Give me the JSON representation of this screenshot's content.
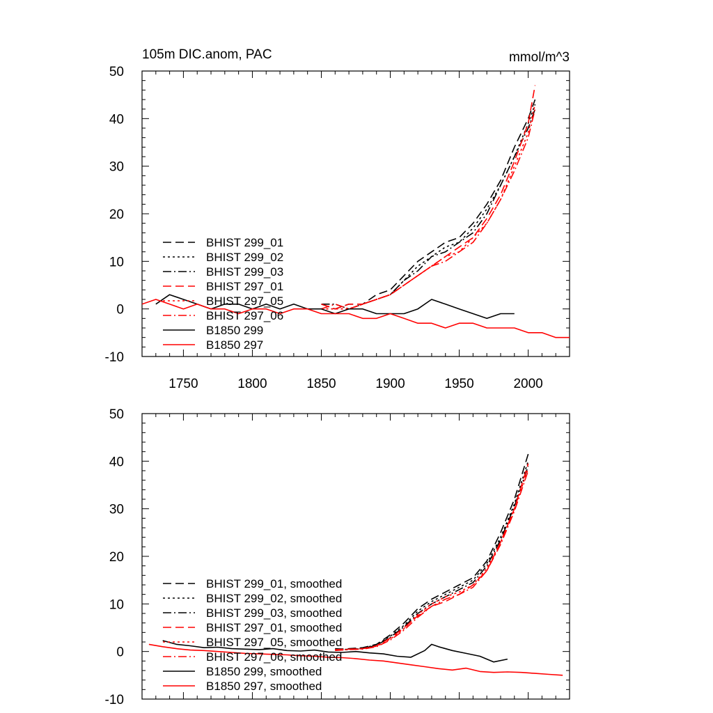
{
  "chart_data": [
    {
      "type": "line",
      "title_left": "105m DIC.anom, PAC",
      "title_right": "mmol/m^3",
      "xlabel": "",
      "ylabel": "",
      "xlim": [
        1720,
        2030
      ],
      "ylim": [
        -10,
        50
      ],
      "x_ticks": [
        1750,
        1800,
        1850,
        1900,
        1950,
        2000
      ],
      "x_tick_labels": [
        "1750",
        "1800",
        "1850",
        "1900",
        "1950",
        "2000"
      ],
      "y_ticks": [
        -10,
        0,
        10,
        20,
        30,
        40,
        50
      ],
      "y_tick_labels": [
        "-10",
        "0",
        "10",
        "20",
        "30",
        "40",
        "50"
      ],
      "grid": false,
      "legend_position": "left",
      "series": [
        {
          "name": "BHIST 299_01",
          "color": "#000000",
          "dash": "dash",
          "x": [
            1850,
            1860,
            1870,
            1880,
            1890,
            1900,
            1910,
            1920,
            1930,
            1940,
            1950,
            1960,
            1970,
            1980,
            1990,
            2000,
            2005
          ],
          "y": [
            1,
            0,
            1,
            1,
            3,
            4,
            7,
            10,
            12,
            14,
            15,
            18,
            22,
            27,
            34,
            40,
            44
          ]
        },
        {
          "name": "BHIST 299_02",
          "color": "#000000",
          "dash": "dot",
          "x": [
            1850,
            1860,
            1870,
            1880,
            1890,
            1900,
            1910,
            1920,
            1930,
            1940,
            1950,
            1960,
            1970,
            1980,
            1990,
            2000,
            2005
          ],
          "y": [
            0,
            0,
            0,
            1,
            2,
            3,
            6,
            9,
            11,
            13,
            14,
            17,
            21,
            26,
            32,
            39,
            43
          ]
        },
        {
          "name": "BHIST 299_03",
          "color": "#000000",
          "dash": "dashdot",
          "x": [
            1850,
            1860,
            1870,
            1880,
            1890,
            1900,
            1910,
            1920,
            1930,
            1940,
            1950,
            1960,
            1970,
            1980,
            1990,
            2000,
            2005
          ],
          "y": [
            1,
            1,
            0,
            1,
            2,
            3,
            6,
            8,
            11,
            12,
            14,
            16,
            20,
            26,
            32,
            38,
            42
          ]
        },
        {
          "name": "BHIST 297_01",
          "color": "#ff0000",
          "dash": "dash",
          "x": [
            1850,
            1860,
            1870,
            1880,
            1890,
            1900,
            1910,
            1920,
            1930,
            1940,
            1950,
            1960,
            1970,
            1980,
            1990,
            2000,
            2005
          ],
          "y": [
            1,
            0,
            1,
            1,
            2,
            3,
            5,
            7,
            9,
            11,
            13,
            15,
            19,
            24,
            31,
            39,
            47
          ]
        },
        {
          "name": "BHIST 297_05",
          "color": "#ff0000",
          "dash": "dot",
          "x": [
            1850,
            1860,
            1870,
            1880,
            1890,
            1900,
            1910,
            1920,
            1930,
            1940,
            1950,
            1960,
            1970,
            1980,
            1990,
            2000,
            2005
          ],
          "y": [
            0,
            0,
            0,
            1,
            2,
            3,
            5,
            7,
            9,
            11,
            12,
            15,
            18,
            23,
            30,
            37,
            43
          ]
        },
        {
          "name": "BHIST 297_06",
          "color": "#ff0000",
          "dash": "dashdot",
          "x": [
            1850,
            1860,
            1870,
            1880,
            1890,
            1900,
            1910,
            1920,
            1930,
            1940,
            1950,
            1960,
            1970,
            1980,
            1990,
            2000,
            2005
          ],
          "y": [
            0,
            1,
            0,
            1,
            2,
            3,
            5,
            7,
            9,
            10,
            12,
            14,
            18,
            23,
            29,
            36,
            42
          ]
        },
        {
          "name": "B1850 299",
          "color": "#000000",
          "dash": "solid",
          "x": [
            1730,
            1740,
            1750,
            1760,
            1770,
            1780,
            1790,
            1800,
            1810,
            1820,
            1830,
            1840,
            1850,
            1860,
            1870,
            1880,
            1890,
            1900,
            1910,
            1920,
            1930,
            1940,
            1950,
            1960,
            1970,
            1980,
            1990
          ],
          "y": [
            1,
            3,
            2,
            1,
            0,
            1,
            1,
            0,
            1,
            0,
            1,
            0,
            0,
            -1,
            0,
            0,
            -1,
            -1,
            -1,
            0,
            2,
            1,
            0,
            -1,
            -2,
            -1,
            -1
          ]
        },
        {
          "name": "B1850 297",
          "color": "#ff0000",
          "dash": "solid",
          "x": [
            1720,
            1730,
            1740,
            1750,
            1760,
            1770,
            1780,
            1790,
            1800,
            1810,
            1820,
            1830,
            1840,
            1850,
            1860,
            1870,
            1880,
            1890,
            1900,
            1910,
            1920,
            1930,
            1940,
            1950,
            1960,
            1970,
            1980,
            1990,
            2000,
            2010,
            2020,
            2030
          ],
          "y": [
            1,
            2,
            1,
            0,
            1,
            0,
            0,
            -1,
            0,
            0,
            -1,
            0,
            0,
            -1,
            -1,
            -1,
            -2,
            -2,
            -1,
            -2,
            -3,
            -3,
            -4,
            -3,
            -3,
            -4,
            -4,
            -4,
            -5,
            -5,
            -6,
            -6
          ]
        }
      ]
    },
    {
      "type": "line",
      "title_left": "",
      "title_right": "",
      "xlabel": "",
      "ylabel": "",
      "xlim": [
        1720,
        2030
      ],
      "ylim": [
        -10,
        50
      ],
      "x_ticks": [
        1750,
        1800,
        1850,
        1900,
        1950,
        2000
      ],
      "x_tick_labels": [],
      "y_ticks": [
        -10,
        0,
        10,
        20,
        30,
        40,
        50
      ],
      "y_tick_labels": [
        "-10",
        "0",
        "10",
        "20",
        "30",
        "40",
        "50"
      ],
      "grid": false,
      "legend_position": "left",
      "series": [
        {
          "name": "BHIST 299_01, smoothed",
          "color": "#000000",
          "dash": "dash",
          "x": [
            1860,
            1870,
            1880,
            1890,
            1900,
            1910,
            1920,
            1930,
            1940,
            1950,
            1960,
            1970,
            1980,
            1990,
            2000
          ],
          "y": [
            0.5,
            0.6,
            0.8,
            1.5,
            3.5,
            6,
            9,
            11,
            12.5,
            14,
            15.5,
            19,
            25,
            32,
            41.5
          ]
        },
        {
          "name": "BHIST 299_02, smoothed",
          "color": "#000000",
          "dash": "dot",
          "x": [
            1860,
            1870,
            1880,
            1890,
            1900,
            1910,
            1920,
            1930,
            1940,
            1950,
            1960,
            1970,
            1980,
            1990,
            2000
          ],
          "y": [
            0.3,
            0.5,
            0.7,
            1.4,
            3.2,
            5.5,
            8.5,
            10.5,
            12,
            13.5,
            15,
            18.5,
            24,
            31,
            40
          ]
        },
        {
          "name": "BHIST 299_03, smoothed",
          "color": "#000000",
          "dash": "dashdot",
          "x": [
            1860,
            1870,
            1880,
            1890,
            1900,
            1910,
            1920,
            1930,
            1940,
            1950,
            1960,
            1970,
            1980,
            1990,
            2000
          ],
          "y": [
            0.6,
            0.4,
            0.6,
            1.3,
            3.0,
            5.2,
            8,
            10,
            11.5,
            13,
            14.5,
            18,
            23.5,
            30.5,
            39
          ]
        },
        {
          "name": "BHIST 297_01, smoothed",
          "color": "#ff0000",
          "dash": "dash",
          "x": [
            1860,
            1870,
            1880,
            1890,
            1900,
            1910,
            1920,
            1930,
            1940,
            1950,
            1960,
            1970,
            1980,
            1990,
            2000
          ],
          "y": [
            0.4,
            0.5,
            0.6,
            1.2,
            2.8,
            5,
            7.5,
            9.5,
            10.5,
            12,
            14,
            17,
            23,
            30,
            39.5
          ]
        },
        {
          "name": "BHIST 297_05, smoothed",
          "color": "#ff0000",
          "dash": "dot",
          "x": [
            1860,
            1870,
            1880,
            1890,
            1900,
            1910,
            1920,
            1930,
            1940,
            1950,
            1960,
            1970,
            1980,
            1990,
            2000
          ],
          "y": [
            0.3,
            0.4,
            0.6,
            1.1,
            2.6,
            4.8,
            7.8,
            10,
            11.5,
            12.5,
            14,
            17.5,
            23,
            30,
            38.5
          ]
        },
        {
          "name": "BHIST 297_06, smoothed",
          "color": "#ff0000",
          "dash": "dashdot",
          "x": [
            1860,
            1870,
            1880,
            1890,
            1900,
            1910,
            1920,
            1930,
            1940,
            1950,
            1960,
            1970,
            1980,
            1990,
            2000
          ],
          "y": [
            0.2,
            0.4,
            0.5,
            1.0,
            2.4,
            4.5,
            7.2,
            9.5,
            11,
            12,
            13.5,
            17,
            22.5,
            29.5,
            38
          ]
        },
        {
          "name": "B1850 299, smoothed",
          "color": "#000000",
          "dash": "solid",
          "x": [
            1735,
            1745,
            1755,
            1765,
            1775,
            1785,
            1795,
            1805,
            1815,
            1825,
            1835,
            1845,
            1855,
            1865,
            1875,
            1885,
            1895,
            1905,
            1915,
            1925,
            1930,
            1935,
            1945,
            1955,
            1965,
            1975,
            1985
          ],
          "y": [
            2.3,
            1.5,
            1.2,
            0.8,
            0.9,
            0.6,
            0.5,
            0.4,
            0.6,
            0.2,
            0.1,
            0.3,
            -0.1,
            -0.2,
            0.0,
            -0.3,
            -0.5,
            -1.0,
            -1.2,
            0.2,
            1.5,
            1.0,
            0.2,
            -0.4,
            -1.0,
            -2.2,
            -1.6
          ]
        },
        {
          "name": "B1850 297, smoothed",
          "color": "#ff0000",
          "dash": "solid",
          "x": [
            1725,
            1735,
            1745,
            1755,
            1765,
            1775,
            1785,
            1795,
            1805,
            1815,
            1825,
            1835,
            1845,
            1855,
            1865,
            1875,
            1885,
            1895,
            1905,
            1915,
            1925,
            1935,
            1945,
            1955,
            1965,
            1975,
            1985,
            1995,
            2005,
            2015,
            2025
          ],
          "y": [
            1.5,
            1.0,
            0.6,
            0.3,
            0.2,
            0.0,
            -0.2,
            -0.4,
            -0.5,
            -0.6,
            -0.7,
            -0.9,
            -1.0,
            -1.2,
            -1.3,
            -1.5,
            -1.8,
            -2.0,
            -2.4,
            -2.8,
            -3.2,
            -3.6,
            -3.9,
            -3.5,
            -4.2,
            -4.4,
            -4.3,
            -4.4,
            -4.6,
            -4.8,
            -5.0
          ]
        }
      ]
    }
  ]
}
